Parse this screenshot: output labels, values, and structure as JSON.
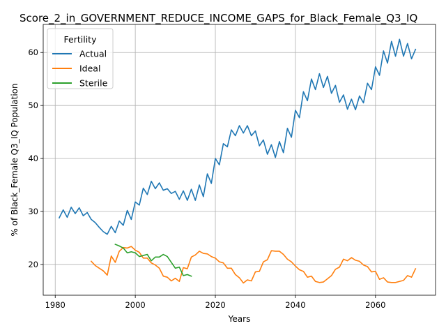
{
  "chart_data": {
    "type": "line",
    "title": "Score_2_in_GOVERNMENT_REDUCE_INCOME_GAPS_for_Black_Female_Q3_IQ",
    "xlabel": "Years",
    "ylabel": "% of Black_Female Q3_IQ Population",
    "xlim": [
      1977,
      2075
    ],
    "ylim": [
      14.2,
      65.3
    ],
    "xticks": [
      1980,
      2000,
      2020,
      2040,
      2060
    ],
    "yticks": [
      20,
      30,
      40,
      50,
      60
    ],
    "grid": true,
    "legend": {
      "title": "Fertility",
      "placement": "upper-left"
    },
    "series": [
      {
        "name": "Actual",
        "color": "#1f77b4",
        "x": [
          1981,
          1982,
          1983,
          1984,
          1985,
          1986,
          1987,
          1988,
          1989,
          1990,
          1991,
          1992,
          1993,
          1994,
          1995,
          1996,
          1997,
          1998,
          1999,
          2000,
          2001,
          2002,
          2003,
          2004,
          2005,
          2006,
          2007,
          2008,
          2009,
          2010,
          2011,
          2012,
          2013,
          2014,
          2015,
          2016,
          2017,
          2018,
          2019,
          2020,
          2021,
          2022,
          2023,
          2024,
          2025,
          2026,
          2027,
          2028,
          2029,
          2030,
          2031,
          2032,
          2033,
          2034,
          2035,
          2036,
          2037,
          2038,
          2039,
          2040,
          2041,
          2042,
          2043,
          2044,
          2045,
          2046,
          2047,
          2048,
          2049,
          2050,
          2051,
          2052,
          2053,
          2054,
          2055,
          2056,
          2057,
          2058,
          2059,
          2060,
          2061,
          2062,
          2063,
          2064,
          2065,
          2066,
          2067,
          2068,
          2069,
          2070
        ],
        "y": [
          28.8,
          30.3,
          28.9,
          30.8,
          29.6,
          30.7,
          29.2,
          29.8,
          28.5,
          27.9,
          27.0,
          26.2,
          25.7,
          27.2,
          26.0,
          28.2,
          27.4,
          30.2,
          28.5,
          31.8,
          31.2,
          34.4,
          33.2,
          35.7,
          34.3,
          35.4,
          34.0,
          34.3,
          33.4,
          33.8,
          32.3,
          33.9,
          32.1,
          34.2,
          32.1,
          35.0,
          32.8,
          37.1,
          35.3,
          40.0,
          38.8,
          42.8,
          42.2,
          45.4,
          44.3,
          46.2,
          44.8,
          46.2,
          44.3,
          45.2,
          42.4,
          43.5,
          40.8,
          42.6,
          40.2,
          43.2,
          41.1,
          45.7,
          44.0,
          49.1,
          47.7,
          52.6,
          50.9,
          55.0,
          53.0,
          56.0,
          53.4,
          55.5,
          52.3,
          53.8,
          50.6,
          52.0,
          49.3,
          51.2,
          49.2,
          51.8,
          50.5,
          54.2,
          53.0,
          57.3,
          55.7,
          60.3,
          58.0,
          62.1,
          59.3,
          62.5,
          59.3,
          61.7,
          58.8,
          60.6
        ]
      },
      {
        "name": "Ideal",
        "color": "#ff7f0e",
        "x": [
          1989,
          1990,
          1991,
          1992,
          1993,
          1994,
          1995,
          1996,
          1997,
          1998,
          1999,
          2000,
          2001,
          2002,
          2003,
          2004,
          2005,
          2006,
          2007,
          2008,
          2009,
          2010,
          2011,
          2012,
          2013,
          2014,
          2015,
          2016,
          2017,
          2018,
          2019,
          2020,
          2021,
          2022,
          2023,
          2024,
          2025,
          2026,
          2027,
          2028,
          2029,
          2030,
          2031,
          2032,
          2033,
          2034,
          2035,
          2036,
          2037,
          2038,
          2039,
          2040,
          2041,
          2042,
          2043,
          2044,
          2045,
          2046,
          2047,
          2048,
          2049,
          2050,
          2051,
          2052,
          2053,
          2054,
          2055,
          2056,
          2057,
          2058,
          2059,
          2060,
          2061,
          2062,
          2063,
          2064,
          2065,
          2066,
          2067,
          2068,
          2069,
          2070
        ],
        "y": [
          20.6,
          19.8,
          19.3,
          18.8,
          18.0,
          21.6,
          20.4,
          22.5,
          23.2,
          23.1,
          23.4,
          22.7,
          22.3,
          21.2,
          21.2,
          20.3,
          19.9,
          19.3,
          17.8,
          17.6,
          16.9,
          17.4,
          16.8,
          19.4,
          19.2,
          21.4,
          21.8,
          22.5,
          22.1,
          22.0,
          21.5,
          21.2,
          20.5,
          20.3,
          19.3,
          19.3,
          18.1,
          17.5,
          16.5,
          17.1,
          16.9,
          18.6,
          18.7,
          20.5,
          20.9,
          22.6,
          22.5,
          22.5,
          21.9,
          21.0,
          20.5,
          19.7,
          19.0,
          18.7,
          17.6,
          17.8,
          16.8,
          16.6,
          16.7,
          17.3,
          17.9,
          19.1,
          19.5,
          21.0,
          20.7,
          21.3,
          20.8,
          20.6,
          19.9,
          19.6,
          18.6,
          18.7,
          17.2,
          17.5,
          16.7,
          16.6,
          16.6,
          16.8,
          17.0,
          17.9,
          17.6,
          19.2
        ]
      },
      {
        "name": "Sterile",
        "color": "#2ca02c",
        "x": [
          1995,
          1996,
          1997,
          1998,
          1999,
          2000,
          2001,
          2002,
          2003,
          2004,
          2005,
          2006,
          2007,
          2008,
          2009,
          2010,
          2011,
          2012,
          2013,
          2014
        ],
        "y": [
          23.8,
          23.5,
          23.1,
          22.2,
          22.4,
          22.2,
          21.5,
          21.7,
          21.9,
          20.7,
          21.4,
          21.4,
          21.9,
          21.5,
          20.4,
          19.3,
          19.5,
          17.9,
          18.1,
          17.8
        ]
      }
    ]
  }
}
